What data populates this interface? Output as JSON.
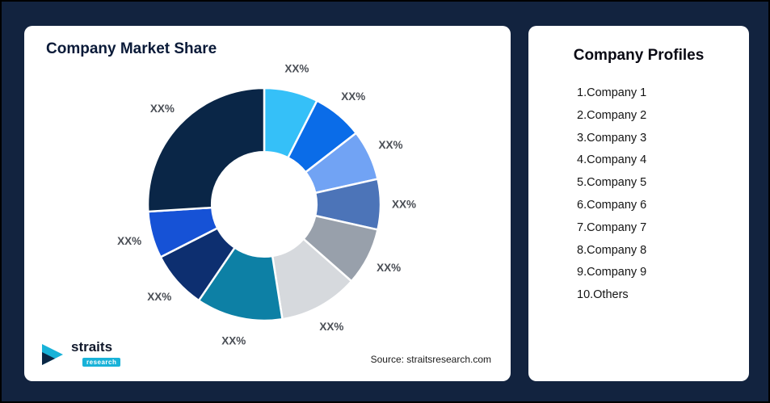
{
  "page": {
    "background": "#12233f",
    "source_text": "Source: straitsresearch.com"
  },
  "chart_card": {
    "title": "Company Market Share"
  },
  "logo": {
    "name": "straits",
    "sub": "research"
  },
  "profiles_card": {
    "title": "Company Profiles",
    "items": [
      "1.Company 1",
      "2.Company 2",
      "3.Company 3",
      "4.Company 4",
      "5.Company 5",
      "6.Company 6",
      "7.Company 7",
      "8.Company 8",
      "9.Company 9",
      "10.Others"
    ]
  },
  "chart_data": {
    "type": "pie",
    "subtype": "donut",
    "title": "Company Market Share",
    "labels": [
      "XX%",
      "XX%",
      "XX%",
      "XX%",
      "XX%",
      "XX%",
      "XX%",
      "XX%",
      "XX%",
      "XX%"
    ],
    "series": [
      {
        "name": "Company 1",
        "value": 7.5
      },
      {
        "name": "Company 2",
        "value": 7
      },
      {
        "name": "Company 3",
        "value": 7
      },
      {
        "name": "Company 4",
        "value": 7
      },
      {
        "name": "Company 5",
        "value": 8
      },
      {
        "name": "Company 6",
        "value": 11
      },
      {
        "name": "Company 7",
        "value": 12
      },
      {
        "name": "Company 8",
        "value": 8
      },
      {
        "name": "Company 9",
        "value": 6.5
      },
      {
        "name": "Others",
        "value": 26
      }
    ],
    "values": [
      7.5,
      7,
      7,
      7,
      8,
      11,
      12,
      8,
      6.5,
      26
    ],
    "values_are_estimated_from_arc_angles": true,
    "colors": [
      "#35C0F8",
      "#0A6CE8",
      "#71A3F4",
      "#4C74B8",
      "#98A0AB",
      "#D6D9DD",
      "#0D80A5",
      "#0D2F70",
      "#1652D6",
      "#0A2647"
    ],
    "start_angle_deg": 0,
    "direction": "clockwise",
    "inner_radius_ratio": 0.45,
    "legend": "none",
    "data_labels": "outside"
  }
}
